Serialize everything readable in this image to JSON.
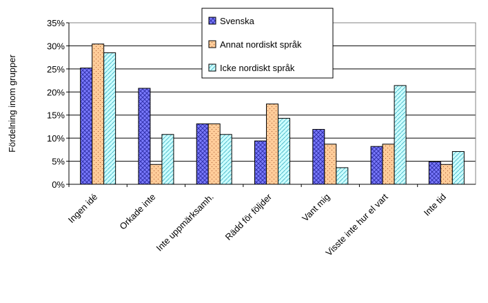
{
  "chart_data": {
    "type": "bar",
    "ylabel": "Fördelning inom grupper",
    "categories": [
      "Ingen idé",
      "Orkade inte",
      "Inte uppmärksamh.",
      "Rädd för följder",
      "Vant mig",
      "Visste inte hur el vart",
      "Inte tid"
    ],
    "series": [
      {
        "name": "Svenska",
        "color": "#7b7bff",
        "values": [
          25.2,
          20.8,
          13.1,
          9.4,
          11.9,
          8.2,
          4.9
        ]
      },
      {
        "name": "Annat nordiskt språk",
        "color": "#ffcc99",
        "values": [
          30.4,
          4.3,
          13.1,
          17.4,
          8.7,
          8.7,
          4.3
        ]
      },
      {
        "name": "Icke nordiskt språk",
        "color": "#ccffff",
        "values": [
          28.5,
          10.8,
          10.8,
          14.3,
          3.6,
          21.4,
          7.1
        ]
      }
    ],
    "ylim": [
      0,
      35
    ],
    "yticks": [
      {
        "value": 0,
        "label": "0%"
      },
      {
        "value": 5,
        "label": "5%"
      },
      {
        "value": 10,
        "label": "10%"
      },
      {
        "value": 15,
        "label": "15%"
      },
      {
        "value": 20,
        "label": "20%"
      },
      {
        "value": 25,
        "label": "25%"
      },
      {
        "value": 30,
        "label": "30%"
      },
      {
        "value": 35,
        "label": "35%"
      }
    ],
    "grid": true
  }
}
